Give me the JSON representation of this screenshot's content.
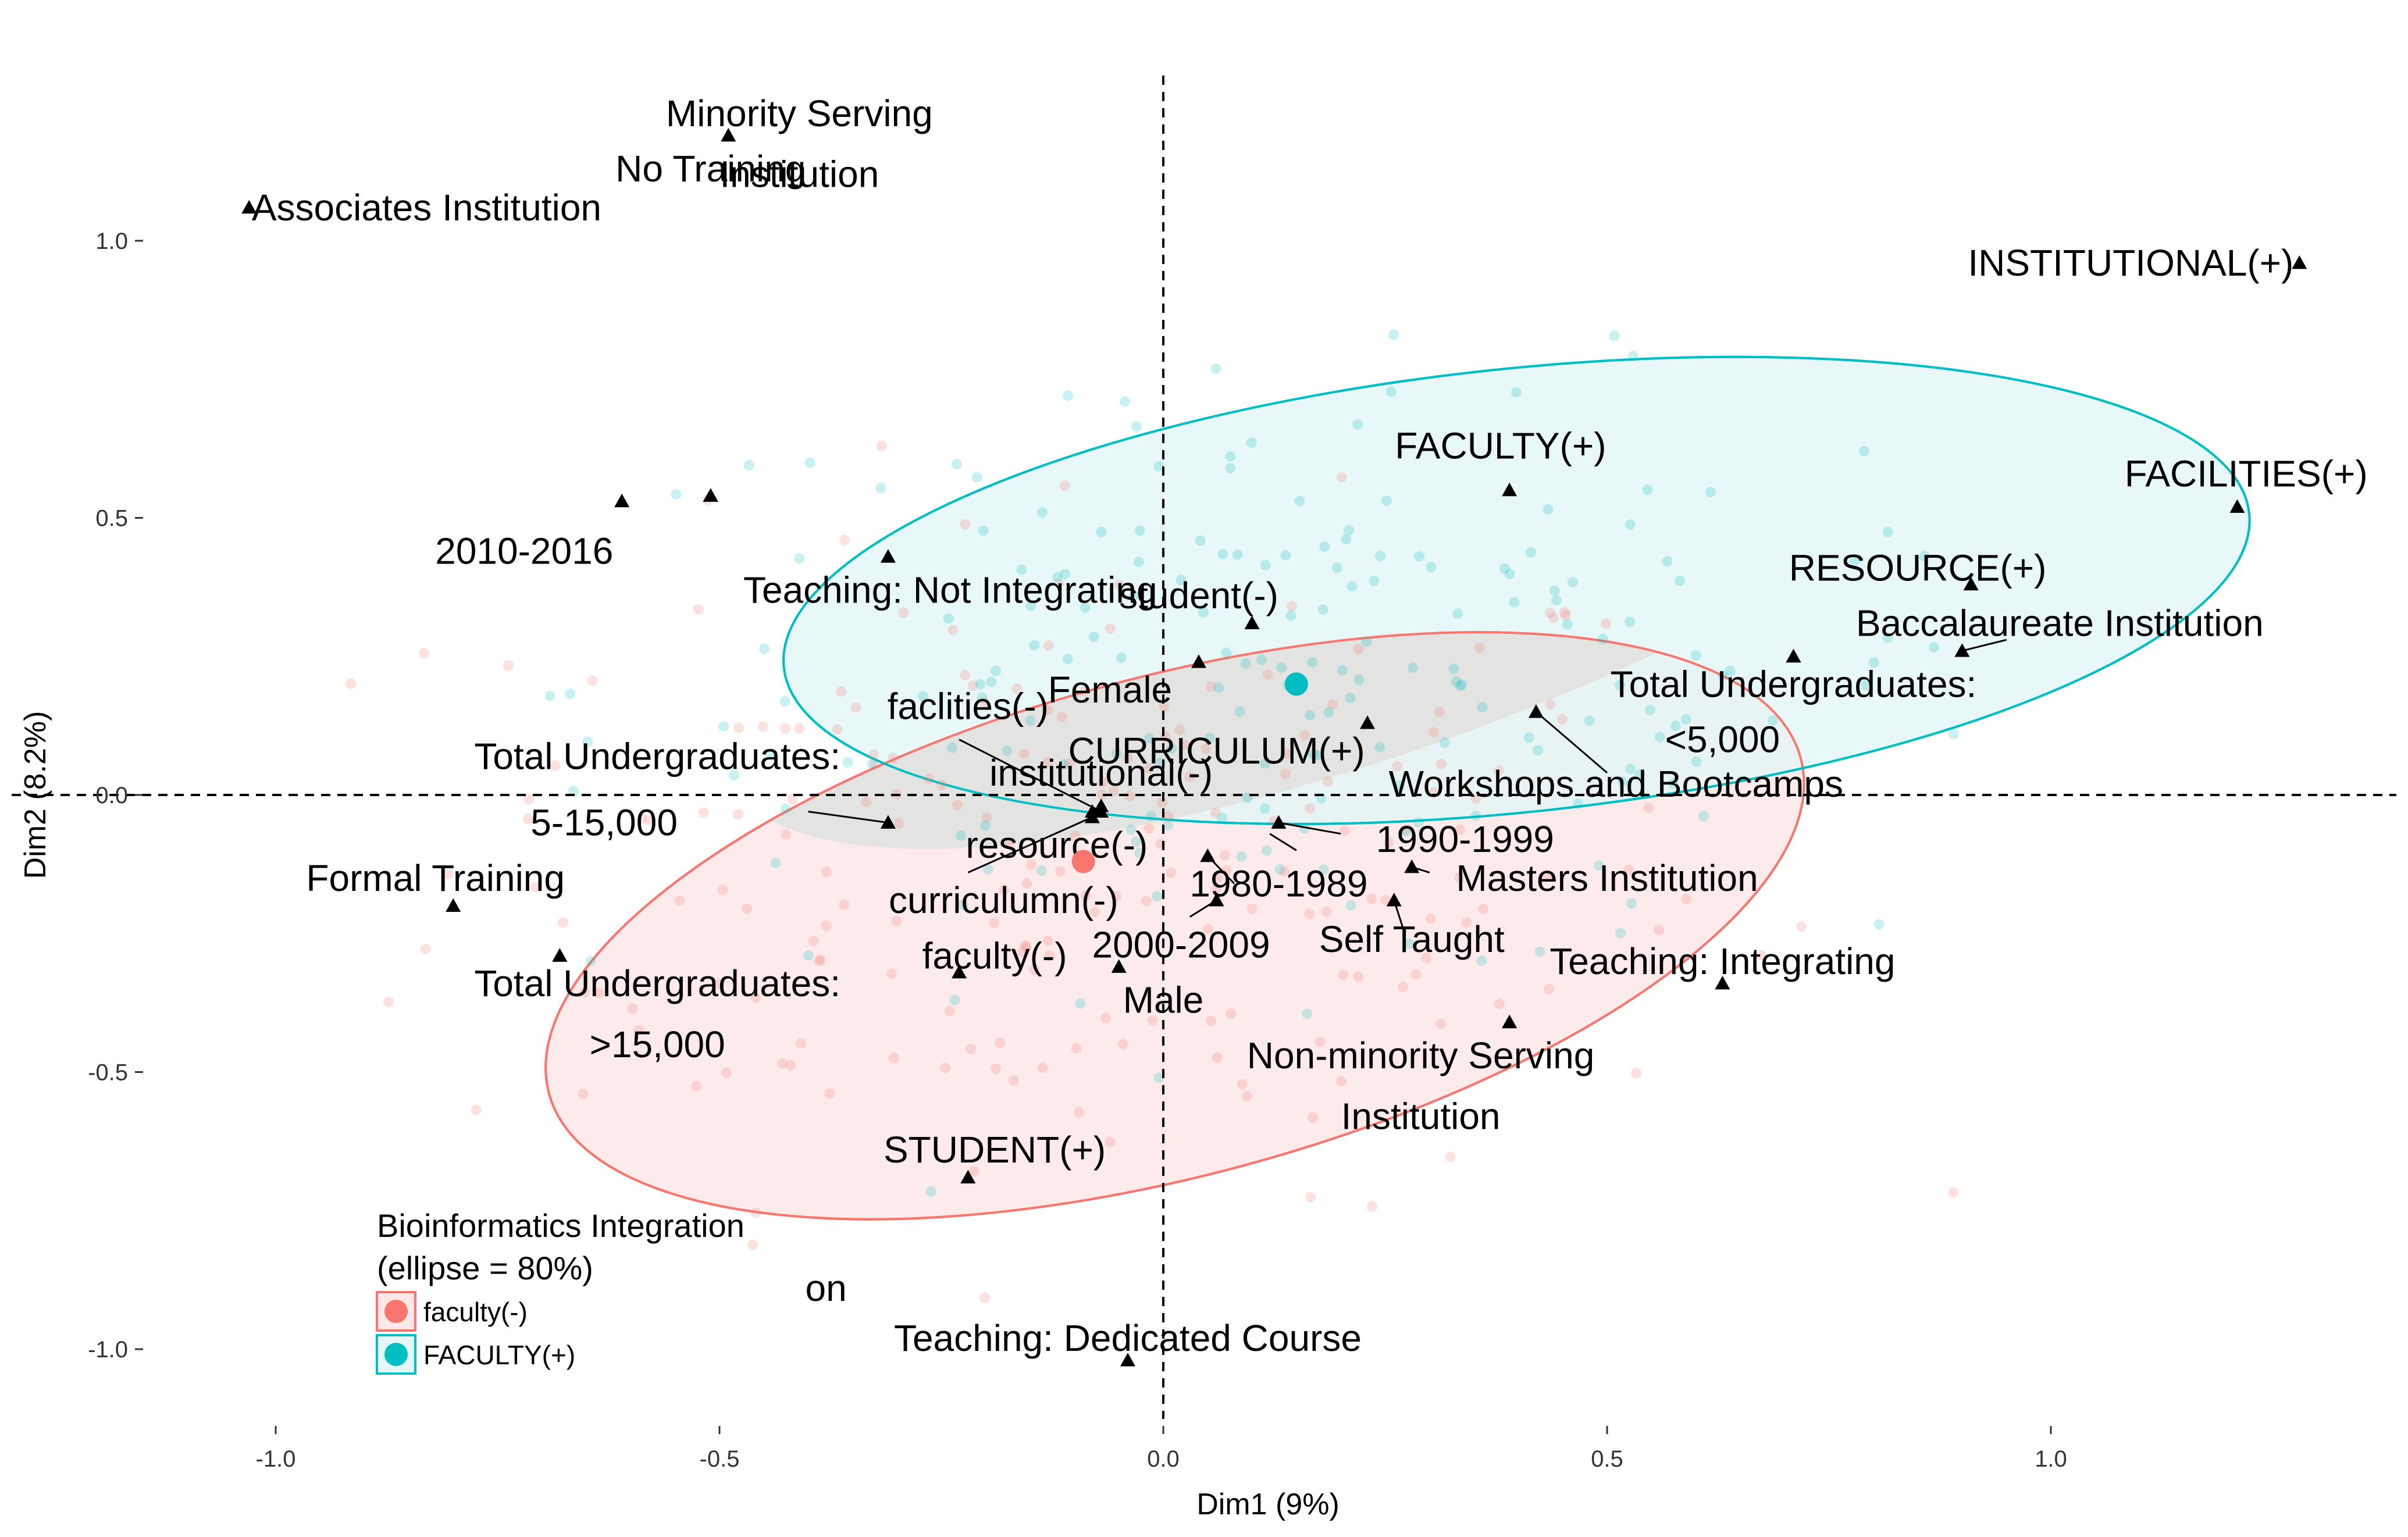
{
  "chart_data": {
    "type": "scatter",
    "xlabel": "Dim1 (9%)",
    "ylabel": "Dim2 (8.2%)",
    "xlim": [
      -1.0,
      1.0
    ],
    "ylim": [
      -1.0,
      1.0
    ],
    "xticks": [
      -1.0,
      -0.5,
      0.0,
      0.5,
      1.0
    ],
    "yticks": [
      -1.0,
      -0.5,
      0.0,
      0.5,
      1.0
    ],
    "xtick_labels": [
      "-1.0",
      "-0.5",
      "0.0",
      "0.5",
      "1.0"
    ],
    "ytick_labels": [
      "-1.0",
      "-0.5",
      "0.0",
      "0.5",
      "1.0"
    ],
    "grid": false,
    "reference_lines": {
      "x": 0,
      "y": 0,
      "style": "dashed"
    },
    "colors": {
      "group1": "#F8766D",
      "group2": "#00BFC4",
      "group1_fill": "#FDE7E7",
      "group2_fill": "#E4F6F6",
      "variable_marker": "#000000"
    },
    "legend": {
      "title_line1": "Bioinformatics Integration",
      "title_line2": "(ellipse = 80%)",
      "placement": "bottom-left",
      "entries": [
        "faculty(-)",
        "FACULTY(+)"
      ]
    },
    "groups": [
      {
        "name": "faculty(-)",
        "color": "#F8766D",
        "centroid": [
          -0.09,
          -0.12
        ],
        "ellipse": {
          "center": [
            0.013,
            -0.236
          ],
          "rx": 0.73,
          "ry": 0.45,
          "angle_deg": -15
        }
      },
      {
        "name": "FACULTY(+)",
        "color": "#00BFC4",
        "centroid": [
          0.15,
          0.2
        ],
        "ellipse": {
          "center": [
            0.398,
            0.369
          ],
          "rx": 0.83,
          "ry": 0.4,
          "angle_deg": -6
        }
      }
    ],
    "variables": [
      {
        "label": "No Training",
        "x": -0.49,
        "y": 1.19,
        "dx": -0.02,
        "dy": -0.06
      },
      {
        "label": "Associates Institution",
        "x": -1.03,
        "y": 1.06,
        "dx": 0.2,
        "dy": 0.0
      },
      {
        "label": "INSTITUTIONAL(+)",
        "x": 1.28,
        "y": 0.96,
        "dx": -0.19,
        "dy": 0.0
      },
      {
        "label": "Minority Serving",
        "x": -0.51,
        "y": 0.54,
        "dx": 0.1,
        "dy": 0.69
      },
      {
        "label": "Institution",
        "x": -0.51,
        "y": 0.54,
        "dx": 0.1,
        "dy": 0.58
      },
      {
        "label": "2010-2016",
        "x": -0.61,
        "y": 0.53,
        "dx": -0.11,
        "dy": -0.09
      },
      {
        "label": "FACULTY(+)",
        "x": 0.39,
        "y": 0.55,
        "dx": -0.01,
        "dy": 0.08
      },
      {
        "label": "FACILITIES(+)",
        "x": 1.21,
        "y": 0.52,
        "dx": 0.01,
        "dy": 0.06
      },
      {
        "label": "RESOURCE(+)",
        "x": 0.91,
        "y": 0.38,
        "dx": -0.06,
        "dy": 0.03
      },
      {
        "label": "Baccalaureate Institution",
        "x": 0.9,
        "y": 0.26,
        "dx": 0.11,
        "dy": 0.05
      },
      {
        "label": "Teaching: Not Integrating",
        "x": -0.31,
        "y": 0.43,
        "dx": 0.07,
        "dy": -0.06
      },
      {
        "label": "student(-)",
        "x": 0.1,
        "y": 0.31,
        "dx": -0.06,
        "dy": 0.05
      },
      {
        "label": "Female",
        "x": 0.04,
        "y": 0.24,
        "dx": -0.1,
        "dy": -0.05
      },
      {
        "label": "Total Undergraduates:",
        "x": 0.71,
        "y": 0.25,
        "dx": 0.0,
        "dy": -0.05
      },
      {
        "label": "<5,000",
        "x": 0.71,
        "y": 0.25,
        "dx": -0.08,
        "dy": -0.15
      },
      {
        "label": "CURRICULUM(+)",
        "x": 0.23,
        "y": 0.13,
        "dx": -0.17,
        "dy": -0.05
      },
      {
        "label": "faclities(-)",
        "x": -0.08,
        "y": -0.03,
        "dx": -0.14,
        "dy": 0.19
      },
      {
        "label": "institutional(-)",
        "x": -0.07,
        "y": -0.02,
        "dx": 0.0,
        "dy": 0.06
      },
      {
        "label": "Workshops and Bootcamps",
        "x": 0.42,
        "y": 0.15,
        "dx": 0.09,
        "dy": -0.13
      },
      {
        "label": "Total Undergraduates:",
        "x": -0.31,
        "y": -0.05,
        "dx": -0.26,
        "dy": 0.12
      },
      {
        "label": "5-15,000",
        "x": -0.31,
        "y": -0.05,
        "dx": -0.32,
        "dy": 0.0
      },
      {
        "label": "resource(-)",
        "x": -0.07,
        "y": -0.03,
        "dx": -0.05,
        "dy": -0.06
      },
      {
        "label": "1990-1999",
        "x": 0.13,
        "y": -0.05,
        "dx": 0.21,
        "dy": -0.03
      },
      {
        "label": "1980-1989",
        "x": 0.05,
        "y": -0.11,
        "dx": 0.08,
        "dy": -0.05
      },
      {
        "label": "Masters Institution",
        "x": 0.28,
        "y": -0.13,
        "dx": 0.22,
        "dy": -0.02
      },
      {
        "label": "curriculumn(-)",
        "x": -0.08,
        "y": -0.04,
        "dx": -0.1,
        "dy": -0.15
      },
      {
        "label": "Formal Training",
        "x": -0.8,
        "y": -0.2,
        "dx": -0.02,
        "dy": 0.05
      },
      {
        "label": "2000-2009",
        "x": 0.06,
        "y": -0.19,
        "dx": -0.04,
        "dy": -0.08
      },
      {
        "label": "Self Taught",
        "x": 0.26,
        "y": -0.19,
        "dx": 0.02,
        "dy": -0.07
      },
      {
        "label": "faculty(-)",
        "x": -0.23,
        "y": -0.32,
        "dx": 0.04,
        "dy": 0.03
      },
      {
        "label": "Teaching: Integrating",
        "x": 0.63,
        "y": -0.34,
        "dx": 0.0,
        "dy": 0.04
      },
      {
        "label": "Total Undergraduates:",
        "x": -0.68,
        "y": -0.29,
        "dx": 0.11,
        "dy": -0.05
      },
      {
        "label": "Male",
        "x": -0.05,
        "y": -0.31,
        "dx": 0.05,
        "dy": -0.06
      },
      {
        "label": ">15,000",
        "x": -0.68,
        "y": -0.29,
        "dx": 0.11,
        "dy": -0.16
      },
      {
        "label": "Non-minority Serving",
        "x": 0.39,
        "y": -0.41,
        "dx": -0.1,
        "dy": -0.06
      },
      {
        "label": "Institution",
        "x": 0.39,
        "y": -0.41,
        "dx": -0.1,
        "dy": -0.17
      },
      {
        "label": "STUDENT(+)",
        "x": -0.22,
        "y": -0.69,
        "dx": 0.03,
        "dy": 0.05
      },
      {
        "label": "Teaching: Dedicated Course",
        "x": -0.04,
        "y": -1.02,
        "dx": 0.0,
        "dy": 0.04
      },
      {
        "label": "on",
        "x": -0.38,
        "y": -0.89,
        "dx": 0.0,
        "dy": 0.0,
        "nomarker": true
      }
    ],
    "leader_lines": [
      {
        "from": [
          0.42,
          0.15
        ],
        "to": [
          0.5,
          0.04
        ]
      },
      {
        "from": [
          -0.07,
          -0.03
        ],
        "to": [
          -0.23,
          0.1
        ]
      },
      {
        "from": [
          -0.31,
          -0.05
        ],
        "to": [
          -0.4,
          -0.03
        ]
      },
      {
        "from": [
          0.13,
          -0.05
        ],
        "to": [
          0.2,
          -0.07
        ]
      },
      {
        "from": [
          0.05,
          -0.11
        ],
        "to": [
          0.08,
          -0.16
        ]
      },
      {
        "from": [
          0.28,
          -0.13
        ],
        "to": [
          0.3,
          -0.14
        ]
      },
      {
        "from": [
          -0.08,
          -0.04
        ],
        "to": [
          -0.22,
          -0.14
        ]
      },
      {
        "from": [
          0.06,
          -0.19
        ],
        "to": [
          0.03,
          -0.22
        ]
      },
      {
        "from": [
          0.26,
          -0.19
        ],
        "to": [
          0.27,
          -0.24
        ]
      },
      {
        "from": [
          0.9,
          0.26
        ],
        "to": [
          0.95,
          0.28
        ]
      },
      {
        "from": [
          0.12,
          -0.07
        ],
        "to": [
          0.15,
          -0.1
        ]
      }
    ],
    "individuals_note": "background points shown as semi-transparent dots colored by group"
  }
}
